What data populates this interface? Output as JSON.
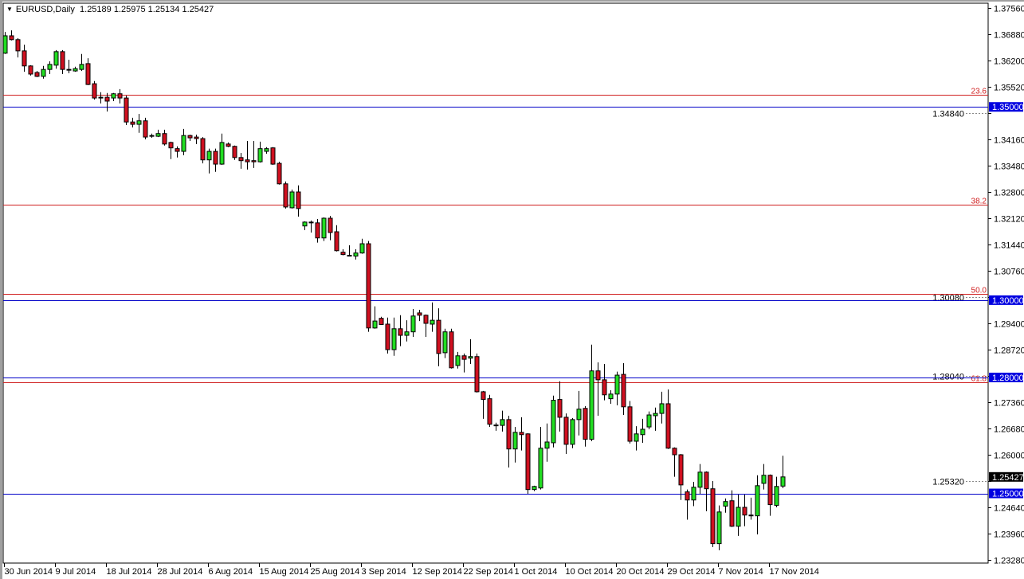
{
  "header": {
    "symbol_timeframe": "EURUSD,Daily",
    "ohlc": "1.25189 1.25975 1.25134 1.25427",
    "menu_icon": "triangle-down-icon"
  },
  "chart_data": {
    "type": "candlestick",
    "symbol": "EURUSD",
    "timeframe": "Daily",
    "ylim": [
      1.2328,
      1.3756
    ],
    "y_ticks": [
      "1.37560",
      "1.36880",
      "1.36200",
      "1.35520",
      "1.34840",
      "1.34160",
      "1.33480",
      "1.32800",
      "1.32120",
      "1.31440",
      "1.30760",
      "1.30080",
      "1.29400",
      "1.28720",
      "1.28040",
      "1.27360",
      "1.26680",
      "1.26000",
      "1.25320",
      "1.24640",
      "1.23960",
      "1.23280"
    ],
    "x_ticks": [
      "30 Jun 2014",
      "9 Jul 2014",
      "18 Jul 2014",
      "28 Jul 2014",
      "6 Aug 2014",
      "15 Aug 2014",
      "25 Aug 2014",
      "3 Sep 2014",
      "12 Sep 2014",
      "22 Sep 2014",
      "1 Oct 2014",
      "10 Oct 2014",
      "20 Oct 2014",
      "29 Oct 2014",
      "7 Nov 2014",
      "17 Nov 2014"
    ],
    "candle_fields": [
      "open",
      "high",
      "low",
      "close"
    ],
    "candles": [
      [
        1.3639,
        1.3694,
        1.3637,
        1.3684
      ],
      [
        1.3684,
        1.3698,
        1.3672,
        1.3674
      ],
      [
        1.3674,
        1.3678,
        1.3628,
        1.3645
      ],
      [
        1.3645,
        1.3661,
        1.3591,
        1.3606
      ],
      [
        1.3606,
        1.3608,
        1.3581,
        1.3585
      ],
      [
        1.3589,
        1.3593,
        1.3577,
        1.3579
      ],
      [
        1.3579,
        1.3606,
        1.3573,
        1.3597
      ],
      [
        1.3597,
        1.3618,
        1.3585,
        1.361
      ],
      [
        1.3608,
        1.3647,
        1.3599,
        1.3643
      ],
      [
        1.3643,
        1.3647,
        1.3585,
        1.3597
      ],
      [
        1.3597,
        1.3622,
        1.3587,
        1.3596
      ],
      [
        1.3593,
        1.3604,
        1.3591,
        1.3599
      ],
      [
        1.3597,
        1.3637,
        1.3593,
        1.361
      ],
      [
        1.3612,
        1.3626,
        1.3556,
        1.3558
      ],
      [
        1.356,
        1.3567,
        1.3519,
        1.3523
      ],
      [
        1.3525,
        1.3538,
        1.3509,
        1.3524
      ],
      [
        1.3525,
        1.3536,
        1.3488,
        1.3515
      ],
      [
        1.3523,
        1.3536,
        1.3515,
        1.3534
      ],
      [
        1.3534,
        1.3546,
        1.3509,
        1.3523
      ],
      [
        1.3523,
        1.3529,
        1.3453,
        1.3461
      ],
      [
        1.3461,
        1.3472,
        1.3447,
        1.3455
      ],
      [
        1.3455,
        1.3482,
        1.3433,
        1.3464
      ],
      [
        1.3464,
        1.3472,
        1.3416,
        1.3422
      ],
      [
        1.3426,
        1.3431,
        1.342,
        1.3425
      ],
      [
        1.3424,
        1.3441,
        1.3422,
        1.3431
      ],
      [
        1.3431,
        1.3441,
        1.34,
        1.3404
      ],
      [
        1.3408,
        1.341,
        1.3365,
        1.3394
      ],
      [
        1.3392,
        1.3398,
        1.3369,
        1.3385
      ],
      [
        1.3385,
        1.3443,
        1.3375,
        1.3426
      ],
      [
        1.3426,
        1.3428,
        1.3412,
        1.342
      ],
      [
        1.3422,
        1.3428,
        1.3404,
        1.3418
      ],
      [
        1.3418,
        1.3422,
        1.3354,
        1.3363
      ],
      [
        1.3363,
        1.3392,
        1.3328,
        1.3385
      ],
      [
        1.3385,
        1.3392,
        1.3332,
        1.3352
      ],
      [
        1.3352,
        1.3431,
        1.335,
        1.3408
      ],
      [
        1.3404,
        1.3408,
        1.3396,
        1.3398
      ],
      [
        1.3398,
        1.34,
        1.3363,
        1.3369
      ],
      [
        1.3369,
        1.3381,
        1.334,
        1.3361
      ],
      [
        1.3363,
        1.3412,
        1.3338,
        1.3358
      ],
      [
        1.3361,
        1.3412,
        1.3342,
        1.3358
      ],
      [
        1.3358,
        1.341,
        1.3356,
        1.3392
      ],
      [
        1.3385,
        1.3396,
        1.3379,
        1.3392
      ],
      [
        1.3394,
        1.3396,
        1.335,
        1.3352
      ],
      [
        1.3354,
        1.3358,
        1.3299,
        1.3301
      ],
      [
        1.3301,
        1.3307,
        1.3237,
        1.3241
      ],
      [
        1.3239,
        1.3286,
        1.3237,
        1.328
      ],
      [
        1.328,
        1.3297,
        1.3216,
        1.3237
      ],
      [
        1.3192,
        1.3204,
        1.3181,
        1.3202
      ],
      [
        1.3202,
        1.3206,
        1.3175,
        1.3201
      ],
      [
        1.32,
        1.321,
        1.3149,
        1.3161
      ],
      [
        1.3161,
        1.3214,
        1.3153,
        1.3212
      ],
      [
        1.3212,
        1.3218,
        1.3155,
        1.3175
      ],
      [
        1.3177,
        1.3194,
        1.3126,
        1.3128
      ],
      [
        1.3124,
        1.3132,
        1.3116,
        1.3118
      ],
      [
        1.3116,
        1.3142,
        1.3114,
        1.3115
      ],
      [
        1.3114,
        1.3132,
        1.3105,
        1.3122
      ],
      [
        1.3122,
        1.3159,
        1.312,
        1.3146
      ],
      [
        1.3146,
        1.3153,
        1.2918,
        1.2928
      ],
      [
        1.2928,
        1.2984,
        1.2926,
        1.2946
      ],
      [
        1.2953,
        1.2957,
        1.2936,
        1.2937
      ],
      [
        1.2938,
        1.2955,
        1.2862,
        1.2872
      ],
      [
        1.2872,
        1.2955,
        1.2856,
        1.2926
      ],
      [
        1.2926,
        1.2961,
        1.2881,
        1.2909
      ],
      [
        1.2909,
        1.2948,
        1.2893,
        1.2918
      ],
      [
        1.2918,
        1.2977,
        1.2905,
        1.2959
      ],
      [
        1.2967,
        1.2975,
        1.2946,
        1.2961
      ],
      [
        1.2961,
        1.2963,
        1.2905,
        1.294
      ],
      [
        1.2938,
        1.2994,
        1.2918,
        1.2948
      ],
      [
        1.2948,
        1.2979,
        1.2829,
        1.2862
      ],
      [
        1.2864,
        1.2926,
        1.285,
        1.2918
      ],
      [
        1.2918,
        1.2926,
        1.2823,
        1.2825
      ],
      [
        1.2831,
        1.2866,
        1.2823,
        1.2856
      ],
      [
        1.2856,
        1.2862,
        1.2813,
        1.2847
      ],
      [
        1.285,
        1.2899,
        1.2835,
        1.2854
      ],
      [
        1.2854,
        1.2862,
        1.2761,
        1.2763
      ],
      [
        1.2763,
        1.2765,
        1.2693,
        1.2743
      ],
      [
        1.2745,
        1.2755,
        1.2672,
        1.2679
      ],
      [
        1.2676,
        1.2683,
        1.2662,
        1.2677
      ],
      [
        1.2676,
        1.2714,
        1.266,
        1.2691
      ],
      [
        1.2691,
        1.2701,
        1.2567,
        1.2615
      ],
      [
        1.2615,
        1.2672,
        1.258,
        1.2658
      ],
      [
        1.2658,
        1.2697,
        1.2611,
        1.2652
      ],
      [
        1.2654,
        1.2656,
        1.2499,
        1.251
      ],
      [
        1.251,
        1.252,
        1.2506,
        1.2518
      ],
      [
        1.2514,
        1.2672,
        1.251,
        1.2617
      ],
      [
        1.2617,
        1.2681,
        1.2582,
        1.2633
      ],
      [
        1.2631,
        1.2753,
        1.2619,
        1.2741
      ],
      [
        1.2743,
        1.279,
        1.266,
        1.2697
      ],
      [
        1.2697,
        1.2707,
        1.2602,
        1.2627
      ],
      [
        1.2627,
        1.2695,
        1.2617,
        1.2691
      ],
      [
        1.2691,
        1.2765,
        1.265,
        1.2718
      ],
      [
        1.272,
        1.2726,
        1.2621,
        1.264
      ],
      [
        1.264,
        1.2885,
        1.2635,
        1.2817
      ],
      [
        1.2817,
        1.2839,
        1.2701,
        1.2794
      ],
      [
        1.2794,
        1.2835,
        1.2741,
        1.2755
      ],
      [
        1.2745,
        1.2767,
        1.2732,
        1.2757
      ],
      [
        1.2757,
        1.2815,
        1.2728,
        1.2806
      ],
      [
        1.2808,
        1.2837,
        1.2703,
        1.2724
      ],
      [
        1.2724,
        1.2739,
        1.2629,
        1.2635
      ],
      [
        1.2635,
        1.2674,
        1.2611,
        1.2654
      ],
      [
        1.2652,
        1.2693,
        1.2631,
        1.2666
      ],
      [
        1.2672,
        1.2712,
        1.2666,
        1.2703
      ],
      [
        1.2701,
        1.2722,
        1.2662,
        1.2707
      ],
      [
        1.2707,
        1.2763,
        1.2681,
        1.2732
      ],
      [
        1.2732,
        1.2769,
        1.2615,
        1.2617
      ],
      [
        1.2617,
        1.2619,
        1.2543,
        1.26
      ],
      [
        1.26,
        1.2602,
        1.2483,
        1.2522
      ],
      [
        1.2504,
        1.251,
        1.2432,
        1.2483
      ],
      [
        1.2483,
        1.253,
        1.2467,
        1.2516
      ],
      [
        1.2516,
        1.2576,
        1.2499,
        1.2555
      ],
      [
        1.2555,
        1.2557,
        1.2454,
        1.2512
      ],
      [
        1.2512,
        1.2532,
        1.2361,
        1.237
      ],
      [
        1.237,
        1.2469,
        1.2353,
        1.2452
      ],
      [
        1.2467,
        1.2487,
        1.245,
        1.2479
      ],
      [
        1.2481,
        1.2508,
        1.2413,
        1.2415
      ],
      [
        1.2415,
        1.2497,
        1.239,
        1.2464
      ],
      [
        1.2464,
        1.2497,
        1.2415,
        1.2444
      ],
      [
        1.2444,
        1.2489,
        1.2432,
        1.2442
      ],
      [
        1.2442,
        1.2547,
        1.2394,
        1.252
      ],
      [
        1.2526,
        1.2576,
        1.251,
        1.2547
      ],
      [
        1.2547,
        1.2549,
        1.2442,
        1.2471
      ],
      [
        1.2469,
        1.2543,
        1.2464,
        1.2518
      ],
      [
        1.25189,
        1.25975,
        1.25134,
        1.25427
      ]
    ],
    "horizontal_levels": [
      {
        "price": 1.35,
        "label": "1.35000"
      },
      {
        "price": 1.3,
        "label": "1.30000"
      },
      {
        "price": 1.28,
        "label": "1.28000"
      },
      {
        "price": 1.25,
        "label": "1.25000"
      }
    ],
    "fibonacci_levels": [
      {
        "price": 1.3531,
        "label": "23.6"
      },
      {
        "price": 1.3247,
        "label": "38.2"
      },
      {
        "price": 1.3016,
        "label": "50.0"
      },
      {
        "price": 1.2788,
        "label": "61.8"
      }
    ],
    "current_price": {
      "price": 1.25427,
      "label": "1.25427"
    },
    "colors": {
      "bull": "#22dd22",
      "bear": "#d01020",
      "outline": "#000000",
      "level_line": "#0000c8",
      "level_label_bg": "#0000e0",
      "fib_line": "#d02020",
      "price_label_bg": "#000000",
      "background": "#ffffff"
    },
    "grid": false
  }
}
